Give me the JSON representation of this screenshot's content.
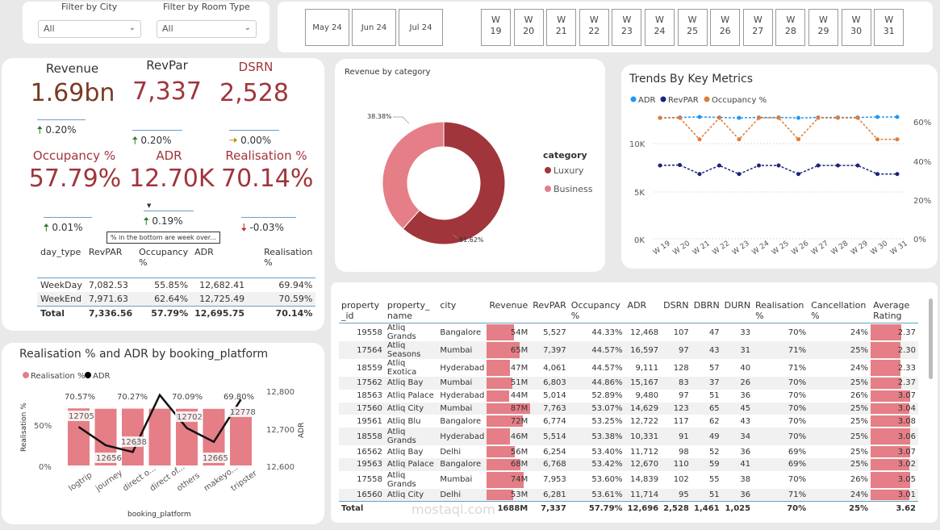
{
  "filters": {
    "city_label": "Filter by City",
    "city_value": "All",
    "room_label": "Filter by Room Type",
    "room_value": "All"
  },
  "months": [
    "May 24",
    "Jun 24",
    "Jul 24"
  ],
  "weeks": [
    [
      "W",
      "19"
    ],
    [
      "W",
      "20"
    ],
    [
      "W",
      "21"
    ],
    [
      "W",
      "22"
    ],
    [
      "W",
      "23"
    ],
    [
      "W",
      "24"
    ],
    [
      "W",
      "25"
    ],
    [
      "W",
      "26"
    ],
    [
      "W",
      "27"
    ],
    [
      "W",
      "28"
    ],
    [
      "W",
      "29"
    ],
    [
      "W",
      "30"
    ],
    [
      "W",
      "31"
    ]
  ],
  "kpis": {
    "revenue": {
      "title": "Revenue",
      "value": "1.69bn",
      "change": "0.20%"
    },
    "revpar": {
      "title": "RevPar",
      "value": "7,337",
      "change": "0.20%"
    },
    "dsrn": {
      "title": "DSRN",
      "value": "2,528",
      "change": "0.00%"
    },
    "occupancy": {
      "title": "Occupancy %",
      "value": "57.79%",
      "change": "0.01%"
    },
    "adr": {
      "title": "ADR",
      "value": "12.70K",
      "change": "0.19%"
    },
    "realisation": {
      "title": "Realisation %",
      "value": "70.14%",
      "change": "-0.03%"
    }
  },
  "tooltip": "% in the bottom are week over...",
  "daytype": {
    "headers": [
      "day_type",
      "RevPAR",
      "Occupancy %",
      "ADR",
      "Realisation %"
    ],
    "rows": [
      [
        "WeekDay",
        "7,082.53",
        "55.85%",
        "12,682.41",
        "69.94%"
      ],
      [
        "WeekEnd",
        "7,971.63",
        "62.64%",
        "12,725.49",
        "70.59%"
      ]
    ],
    "total": [
      "Total",
      "7,336.56",
      "57.79%",
      "12,695.75",
      "70.14%"
    ]
  },
  "donut": {
    "title": "Revenue by category",
    "legend_title": "category",
    "labels": [
      "Luxury",
      "Business"
    ],
    "pct_labels": [
      "61.62%",
      "38.38%"
    ],
    "colors": [
      "#a0353b",
      "#e57e86"
    ]
  },
  "trends": {
    "title": "Trends By Key Metrics",
    "legend": [
      "ADR",
      "RevPAR",
      "Occupancy %"
    ],
    "colors": [
      "#2196f3",
      "#1a237e",
      "#e07b39"
    ],
    "yleft": [
      "10K",
      "5K",
      "0K"
    ],
    "yright": [
      "60%",
      "40%",
      "20%",
      "0%"
    ],
    "x": [
      "W 19",
      "W 20",
      "W 21",
      "W 22",
      "W 23",
      "W 24",
      "W 25",
      "W 26",
      "W 27",
      "W 28",
      "W 29",
      "W 30",
      "W 31"
    ]
  },
  "chart_data": [
    {
      "type": "pie",
      "title": "Revenue by category",
      "categories": [
        "Luxury",
        "Business"
      ],
      "values": [
        61.62,
        38.38
      ]
    },
    {
      "type": "line",
      "title": "Trends By Key Metrics",
      "x": [
        "W 19",
        "W 20",
        "W 21",
        "W 22",
        "W 23",
        "W 24",
        "W 25",
        "W 26",
        "W 27",
        "W 28",
        "W 29",
        "W 30",
        "W 31"
      ],
      "series": [
        {
          "name": "ADR",
          "values": [
            12600,
            12650,
            12700,
            12650,
            12600,
            12650,
            12650,
            12600,
            12650,
            12650,
            12650,
            12700,
            12700
          ]
        },
        {
          "name": "RevPAR",
          "values": [
            7700,
            7750,
            6800,
            7700,
            6800,
            7700,
            7700,
            6800,
            7700,
            7700,
            7700,
            6800,
            6800
          ]
        },
        {
          "name": "Occupancy %",
          "values": [
            62,
            62,
            51,
            62,
            51,
            62,
            62,
            51,
            62,
            62,
            62,
            51,
            51
          ]
        }
      ],
      "ylim": [
        0,
        13000
      ]
    },
    {
      "type": "bar",
      "title": "Realisation % and ADR by booking_platform",
      "xlabel": "booking_platform",
      "ylabel": "Realisation %",
      "y2label": "ADR",
      "categories": [
        "logtrip",
        "journey",
        "direct o...",
        "direct of...",
        "others",
        "makeyo...",
        "tripster"
      ],
      "series": [
        {
          "name": "Realisation %",
          "values": [
            70.57,
            70.1,
            70.27,
            70.2,
            70.09,
            70.0,
            69.8
          ]
        },
        {
          "name": "ADR",
          "values": [
            12705,
            12656,
            12638,
            12790,
            12702,
            12665,
            12778
          ]
        }
      ],
      "ylim": [
        0,
        100
      ],
      "y2lim": [
        12600,
        12800
      ]
    }
  ],
  "platform": {
    "title": "Realisation % and ADR by booking_platform",
    "legend": [
      "Realisation %",
      "ADR"
    ],
    "xlabel": "booking_platform",
    "ylabel": "Realisation %",
    "y2label": "ADR",
    "cats": [
      "logtrip",
      "journey",
      "direct o...",
      "direct of...",
      "others",
      "makeyo...",
      "tripster"
    ],
    "pct_labels": [
      "70.57%",
      "70.27%",
      "70.09%",
      "69.80%"
    ],
    "adr_labels": [
      "12705",
      "12656",
      "12638",
      "12702",
      "12665",
      "12778"
    ],
    "yleft": [
      "50%",
      "0%"
    ],
    "yright": [
      "12,800",
      "12,700",
      "12,600"
    ]
  },
  "property": {
    "headers": [
      "property _id",
      "property_ name",
      "city",
      "Revenue",
      "RevPAR",
      "Occupancy %",
      "ADR",
      "DSRN",
      "DBRN",
      "DURN",
      "Realisation %",
      "Cancellation %",
      "Average Rating"
    ],
    "rows": [
      [
        "19558",
        "Atliq Grands",
        "Bangalore",
        "54M",
        "5,527",
        "44.33%",
        "12,468",
        "107",
        "47",
        "33",
        "70%",
        "24%",
        "2.37"
      ],
      [
        "17564",
        "Atliq Seasons",
        "Mumbai",
        "65M",
        "7,397",
        "44.57%",
        "16,597",
        "97",
        "43",
        "31",
        "71%",
        "25%",
        "2.30"
      ],
      [
        "18559",
        "Atliq Exotica",
        "Hyderabad",
        "47M",
        "4,061",
        "44.57%",
        "9,111",
        "128",
        "57",
        "40",
        "71%",
        "24%",
        "2.33"
      ],
      [
        "17562",
        "Atliq Bay",
        "Mumbai",
        "51M",
        "6,803",
        "44.86%",
        "15,167",
        "83",
        "37",
        "26",
        "70%",
        "25%",
        "2.37"
      ],
      [
        "18563",
        "Atliq Palace",
        "Hyderabad",
        "44M",
        "5,014",
        "52.89%",
        "9,480",
        "97",
        "51",
        "36",
        "70%",
        "26%",
        "3.07"
      ],
      [
        "17560",
        "Atliq City",
        "Mumbai",
        "87M",
        "7,763",
        "53.07%",
        "14,629",
        "123",
        "65",
        "45",
        "70%",
        "25%",
        "3.04"
      ],
      [
        "19561",
        "Atliq Blu",
        "Bangalore",
        "72M",
        "6,774",
        "53.25%",
        "12,722",
        "117",
        "62",
        "43",
        "70%",
        "25%",
        "3.08"
      ],
      [
        "18558",
        "Atliq Grands",
        "Hyderabad",
        "46M",
        "5,514",
        "53.38%",
        "10,331",
        "91",
        "49",
        "34",
        "70%",
        "25%",
        "3.06"
      ],
      [
        "16562",
        "Atliq Bay",
        "Delhi",
        "56M",
        "6,254",
        "53.40%",
        "11,712",
        "98",
        "52",
        "36",
        "69%",
        "25%",
        "3.07"
      ],
      [
        "19563",
        "Atliq Palace",
        "Bangalore",
        "68M",
        "6,768",
        "53.42%",
        "12,670",
        "110",
        "59",
        "41",
        "69%",
        "25%",
        "3.02"
      ],
      [
        "17558",
        "Atliq Grands",
        "Mumbai",
        "74M",
        "7,953",
        "53.60%",
        "14,839",
        "102",
        "55",
        "38",
        "70%",
        "26%",
        "3.05"
      ],
      [
        "16560",
        "Atliq City",
        "Delhi",
        "53M",
        "6,281",
        "53.61%",
        "11,714",
        "95",
        "51",
        "36",
        "71%",
        "24%",
        "3.01"
      ]
    ],
    "total": [
      "Total",
      "",
      "",
      "1688M",
      "7,337",
      "57.79%",
      "12,696",
      "2,528",
      "1,461",
      "1,025",
      "70%",
      "25%",
      "3.62"
    ]
  },
  "watermark": "mostaql.com"
}
